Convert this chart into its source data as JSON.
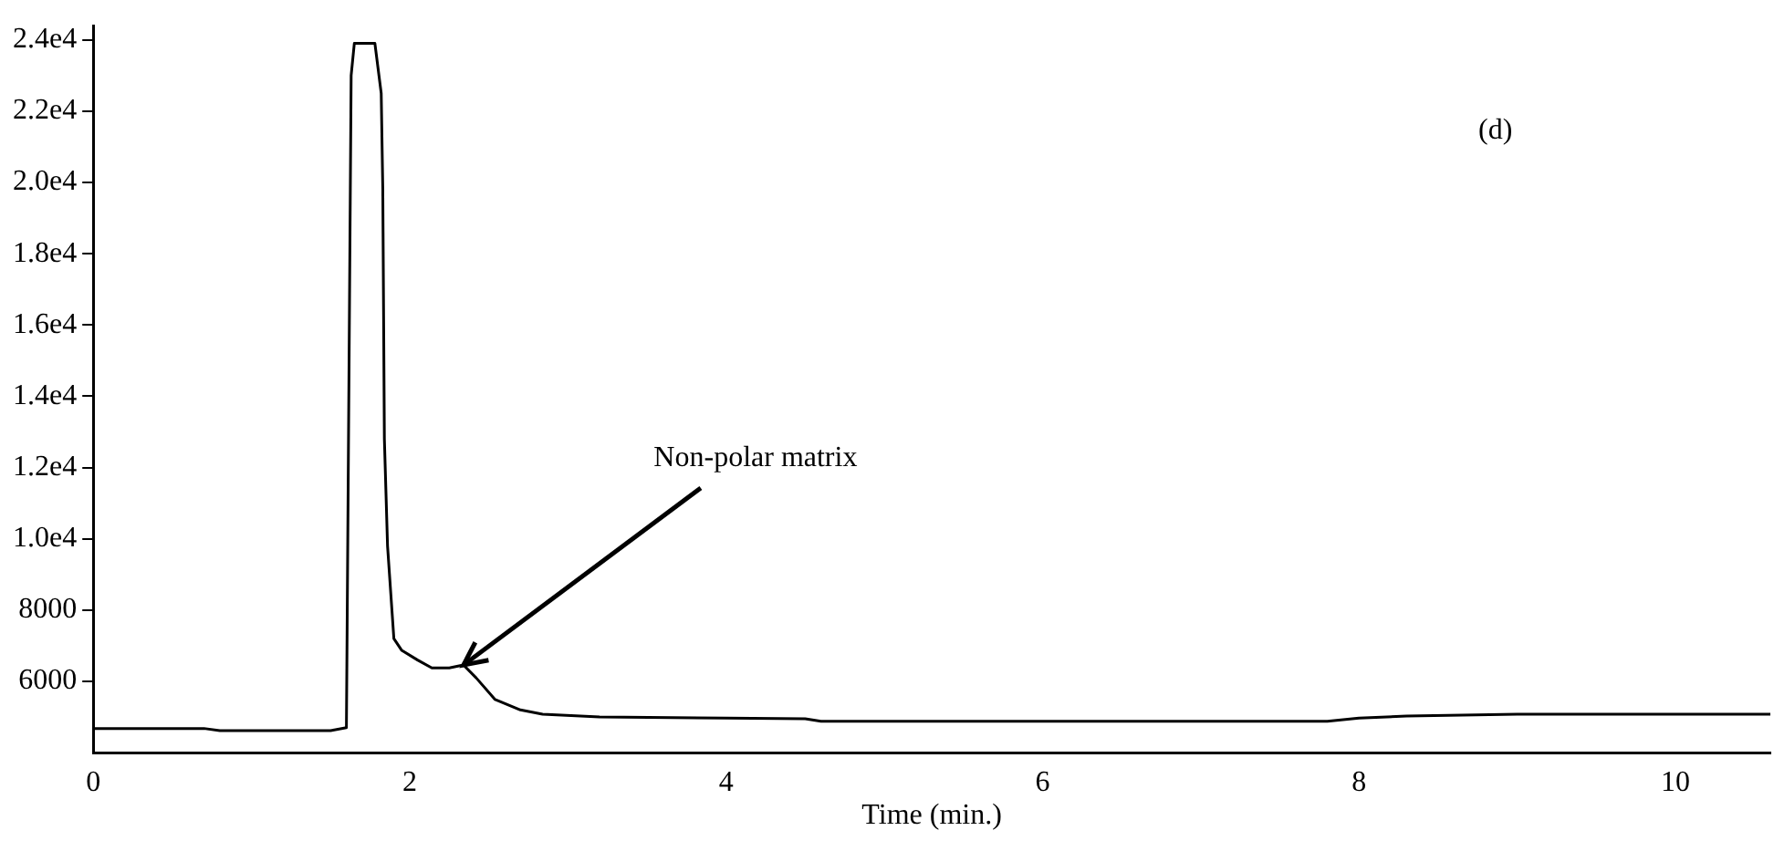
{
  "chart_data": {
    "type": "line",
    "xlabel": "Time (min.)",
    "annotations": [
      "(d)",
      {
        "text": "Non-polar matrix",
        "x": 2.34,
        "y": 6460
      }
    ],
    "x": [
      0,
      0.7,
      0.8,
      1.5,
      1.6,
      1.63,
      1.65,
      1.78,
      1.82,
      1.83,
      1.84,
      1.86,
      1.9,
      1.95,
      2.05,
      2.14,
      2.25,
      2.34,
      2.42,
      2.54,
      2.7,
      2.84,
      3.2,
      4,
      4.5,
      4.6,
      7.8,
      8.0,
      8.3,
      9.0,
      10.6
    ],
    "series": [
      {
        "color": "#000000",
        "values": [
          4680,
          4680,
          4620,
          4620,
          4700,
          23000,
          23900,
          23900,
          22500,
          19800,
          12800,
          9800,
          7200,
          6870,
          6600,
          6380,
          6380,
          6460,
          6100,
          5490,
          5200,
          5080,
          5000,
          4970,
          4950,
          4880,
          4880,
          4970,
          5030,
          5080,
          5080
        ]
      }
    ],
    "xlim": [
      0,
      10.6
    ],
    "ylim": [
      4000,
      24400
    ],
    "xticks": [
      0,
      2,
      4,
      6,
      8,
      10
    ],
    "yticks": [
      {
        "value": 6000,
        "label": "6000"
      },
      {
        "value": 8000,
        "label": "8000"
      },
      {
        "value": 10000,
        "label": "1.0e4"
      },
      {
        "value": 12000,
        "label": "1.2e4"
      },
      {
        "value": 14000,
        "label": "1.4e4"
      },
      {
        "value": 16000,
        "label": "1.6e4"
      },
      {
        "value": 18000,
        "label": "1.8e4"
      },
      {
        "value": 20000,
        "label": "2.0e4"
      },
      {
        "value": 22000,
        "label": "2.2e4"
      },
      {
        "value": 24000,
        "label": "2.4e4"
      }
    ],
    "grid": false,
    "legend": false,
    "marker": "none",
    "line_style": "solid"
  }
}
